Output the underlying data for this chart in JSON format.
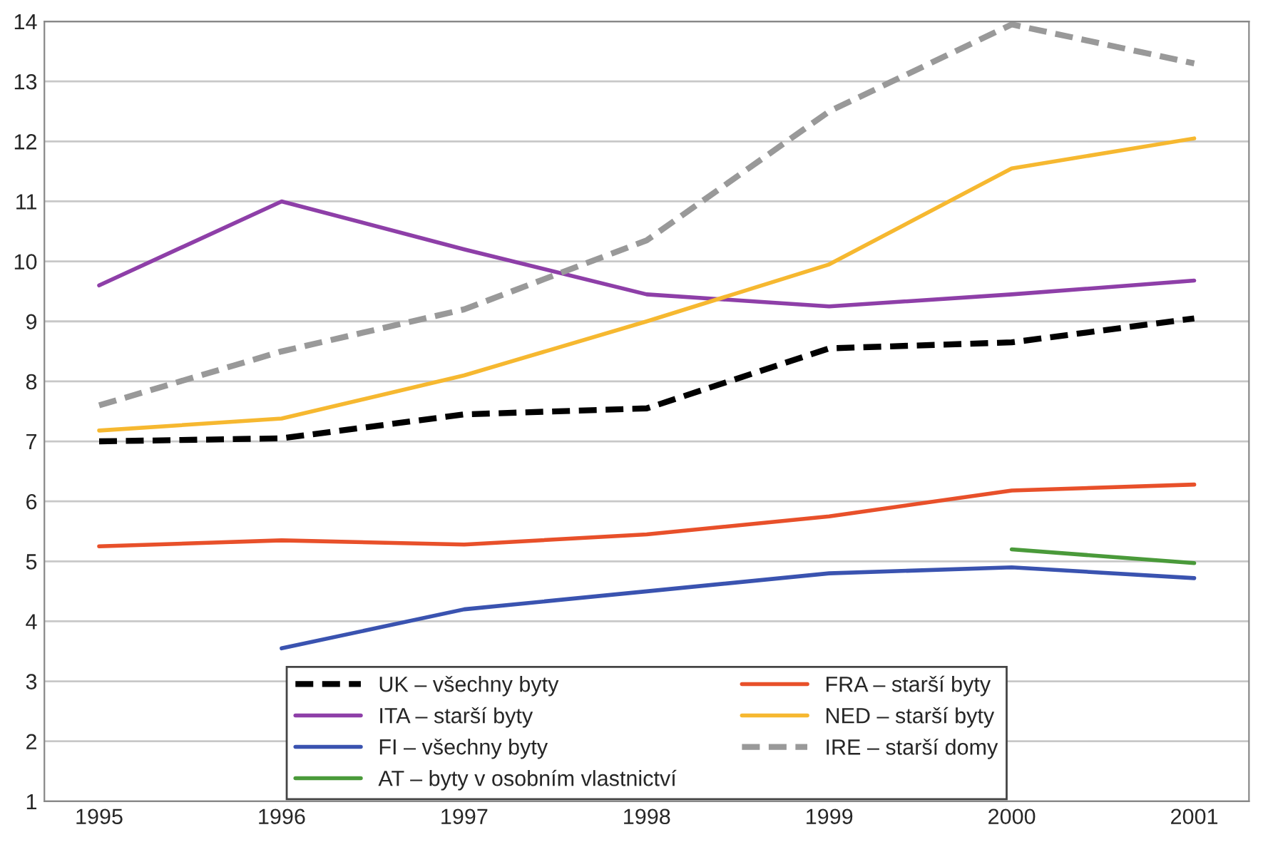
{
  "chart_data": {
    "type": "line",
    "categories": [
      "1995",
      "1996",
      "1997",
      "1998",
      "1999",
      "2000",
      "2001"
    ],
    "series": [
      {
        "name": "UK – všechny byty",
        "color": "#000000",
        "line_style": "dashed",
        "values": [
          7.0,
          7.05,
          7.45,
          7.55,
          8.55,
          8.65,
          9.05
        ]
      },
      {
        "name": "FRA – starší byty",
        "color": "#e8502a",
        "line_style": "solid",
        "values": [
          5.25,
          5.35,
          5.28,
          5.45,
          5.75,
          6.18,
          6.28
        ]
      },
      {
        "name": "ITA – starší byty",
        "color": "#8e3fa8",
        "line_style": "solid",
        "values": [
          9.6,
          11.0,
          10.2,
          9.45,
          9.25,
          9.45,
          9.68
        ]
      },
      {
        "name": "NED – starší byty",
        "color": "#f6b830",
        "line_style": "solid",
        "values": [
          7.18,
          7.38,
          8.1,
          9.0,
          9.95,
          11.55,
          12.05
        ]
      },
      {
        "name": "FI – všechny byty",
        "color": "#3a53b0",
        "line_style": "solid",
        "values": [
          null,
          3.55,
          4.2,
          4.5,
          4.8,
          4.9,
          4.72
        ]
      },
      {
        "name": "IRE – starší domy",
        "color": "#999999",
        "line_style": "dashed",
        "values": [
          7.6,
          8.5,
          9.2,
          10.35,
          12.5,
          13.95,
          13.3
        ]
      },
      {
        "name": "AT – byty v osobním vlastnictví",
        "color": "#4a9a3a",
        "line_style": "solid",
        "values": [
          null,
          null,
          null,
          null,
          null,
          5.2,
          4.97
        ]
      }
    ],
    "ylim": [
      1,
      14
    ],
    "yticks": [
      1,
      2,
      3,
      4,
      5,
      6,
      7,
      8,
      9,
      10,
      11,
      12,
      13,
      14
    ],
    "grid": "y",
    "legend": "bottom",
    "marker": "none"
  }
}
